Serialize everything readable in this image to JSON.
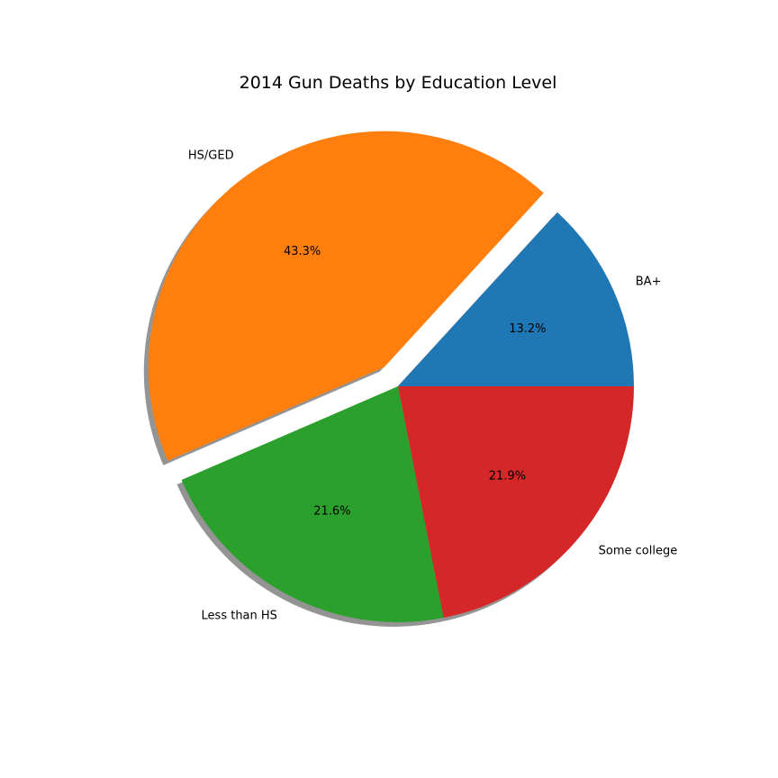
{
  "chart_data": {
    "type": "pie",
    "title": "2014 Gun Deaths by Education Level",
    "slices": [
      {
        "label": "BA+",
        "value": 13.2,
        "pct_label": "13.2%",
        "color": "#1f77b4",
        "explode": false
      },
      {
        "label": "HS/GED",
        "value": 43.3,
        "pct_label": "43.3%",
        "color": "#ff7f0e",
        "explode": true
      },
      {
        "label": "Less than HS",
        "value": 21.6,
        "pct_label": "21.6%",
        "color": "#2ca02c",
        "explode": false
      },
      {
        "label": "Some college",
        "value": 21.9,
        "pct_label": "21.9%",
        "color": "#d62728",
        "explode": false
      }
    ],
    "shadow": true,
    "start_angle_deg": 0,
    "direction": "counterclockwise"
  }
}
